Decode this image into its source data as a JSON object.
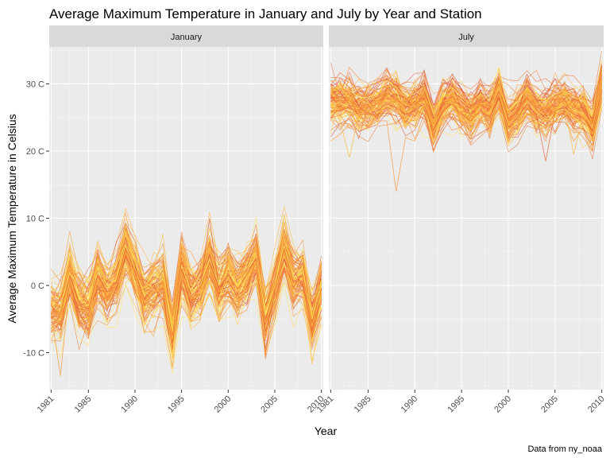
{
  "chart_data": {
    "type": "line",
    "title": "Average Maximum Temperature in January and July by Year and Station",
    "xlabel": "Year",
    "ylabel": "Average Maximum Temperature in Celsius",
    "caption": "Data from ny_noaa",
    "x_ticks": [
      1981,
      1985,
      1990,
      1995,
      2000,
      2005,
      2010
    ],
    "y_ticks": [
      -10,
      0,
      10,
      20,
      30
    ],
    "y_tick_labels": [
      "-10 C",
      "0 C",
      "10 C",
      "20 C",
      "30 C"
    ],
    "xlim": [
      1980.8,
      2010.2
    ],
    "ylim": [
      -15.5,
      35.5
    ],
    "grid": true,
    "legend": "none",
    "colors": [
      "#ffe55c",
      "#ffd23f",
      "#ffb83f",
      "#f79a3c",
      "#f07f3a",
      "#e8663a",
      "#dd4f3c"
    ],
    "panels": [
      {
        "name": "January",
        "years": [
          1981,
          1982,
          1983,
          1984,
          1985,
          1986,
          1987,
          1988,
          1989,
          1990,
          1991,
          1992,
          1993,
          1994,
          1995,
          1996,
          1997,
          1998,
          1999,
          2000,
          2001,
          2002,
          2003,
          2004,
          2005,
          2006,
          2007,
          2008,
          2009,
          2010
        ],
        "mean": [
          -3.5,
          -4.0,
          1.5,
          -2.5,
          -3.5,
          1.5,
          -1.0,
          0.5,
          5.5,
          2.0,
          -2.0,
          -0.5,
          0.5,
          -7.5,
          2.5,
          -1.5,
          -0.5,
          3.5,
          -0.5,
          1.5,
          -0.5,
          1.5,
          4.0,
          -5.0,
          -0.5,
          5.5,
          0.5,
          1.5,
          -5.5,
          -0.5
        ],
        "spread": 2.8,
        "series": [
          {
            "values": [
              -4.0,
              -13.5,
              0.5,
              -3.5,
              -4.0,
              1.0,
              -1.5,
              0.0,
              5.0,
              1.5,
              -2.5,
              -1.0,
              0.0,
              -8.0,
              2.0,
              -2.0,
              -1.0,
              3.0,
              -1.0,
              1.0,
              -1.0,
              1.0,
              3.5,
              -5.5,
              -1.0,
              5.0,
              0.0,
              1.0,
              -6.0,
              -1.0
            ]
          },
          {
            "values": [
              -3.0,
              -4.5,
              1.5,
              -3.0,
              -3.5,
              1.5,
              -1.0,
              0.5,
              5.5,
              2.0,
              -2.0,
              -0.5,
              0.5,
              -7.5,
              2.5,
              -1.5,
              -0.5,
              10.0,
              -0.5,
              1.5,
              -0.5,
              1.5,
              4.0,
              -5.0,
              -0.5,
              5.5,
              0.5,
              1.5,
              -5.5,
              -0.5
            ]
          },
          {
            "values": [
              -2.5,
              -3.0,
              2.0,
              -2.0,
              -3.0,
              2.0,
              -0.5,
              1.0,
              6.0,
              2.5,
              -1.5,
              0.0,
              1.0,
              -10.5,
              3.0,
              -1.0,
              0.0,
              4.0,
              0.0,
              2.0,
              0.0,
              2.0,
              4.5,
              -4.5,
              0.0,
              6.0,
              1.0,
              2.0,
              -5.0,
              0.0
            ]
          },
          {
            "values": [
              -4.0,
              -4.5,
              1.0,
              -3.0,
              -4.0,
              1.0,
              -1.5,
              0.0,
              5.0,
              1.5,
              -2.5,
              -1.0,
              0.0,
              -8.0,
              2.0,
              -2.0,
              -1.0,
              3.0,
              -1.0,
              1.0,
              -1.0,
              1.0,
              3.5,
              -5.5,
              -1.0,
              5.0,
              0.0,
              1.0,
              -6.0,
              -1.0
            ]
          },
          {
            "values": [
              -3.5,
              -4.0,
              1.5,
              -2.5,
              -3.5,
              1.5,
              -1.0,
              0.5,
              5.5,
              2.0,
              -2.0,
              -0.5,
              0.5,
              -7.5,
              2.5,
              -1.5,
              -0.5,
              3.5,
              -0.5,
              1.5,
              -0.5,
              1.5,
              4.0,
              -10.5,
              -0.5,
              5.5,
              0.5,
              1.5,
              -5.5,
              -0.5
            ]
          }
        ],
        "n_extra_series": 110
      },
      {
        "name": "July",
        "years": [
          1981,
          1982,
          1983,
          1984,
          1985,
          1986,
          1987,
          1988,
          1989,
          1990,
          1991,
          1992,
          1993,
          1994,
          1995,
          1996,
          1997,
          1998,
          1999,
          2000,
          2001,
          2002,
          2003,
          2004,
          2005,
          2006,
          2007,
          2008,
          2009,
          2010
        ],
        "mean": [
          27.5,
          27.5,
          27.5,
          26.5,
          26.5,
          27.0,
          28.5,
          28.0,
          26.5,
          27.0,
          28.0,
          24.0,
          27.0,
          28.0,
          26.5,
          25.5,
          27.0,
          26.0,
          29.0,
          24.5,
          26.0,
          28.0,
          26.5,
          26.0,
          27.0,
          27.5,
          26.5,
          26.0,
          24.0,
          30.0
        ],
        "spread": 2.3,
        "series": [
          {
            "values": [
              21.5,
              22.5,
              24.0,
              23.0,
              23.5,
              24.5,
              24.5,
              14.0,
              22.0,
              21.5,
              24.5,
              21.0,
              25.0,
              25.5,
              24.0,
              23.0,
              24.5,
              23.5,
              26.5,
              21.5,
              23.5,
              25.5,
              24.0,
              23.5,
              24.5,
              25.0,
              21.5,
              23.5,
              21.5,
              27.5
            ]
          },
          {
            "values": [
              26.0,
              26.0,
              26.5,
              25.5,
              25.5,
              26.0,
              27.0,
              26.5,
              25.5,
              26.0,
              27.0,
              23.0,
              26.0,
              27.0,
              25.5,
              24.5,
              26.0,
              25.0,
              28.0,
              23.5,
              25.0,
              27.0,
              25.5,
              18.5,
              26.0,
              26.5,
              25.5,
              25.0,
              23.0,
              29.0
            ]
          },
          {
            "values": [
              29.5,
              29.5,
              29.0,
              28.0,
              28.0,
              28.5,
              30.5,
              29.5,
              28.0,
              28.5,
              29.5,
              25.5,
              28.5,
              29.5,
              28.0,
              27.0,
              28.5,
              27.5,
              32.5,
              26.0,
              27.5,
              29.5,
              28.0,
              27.5,
              28.5,
              29.0,
              28.0,
              27.5,
              25.5,
              33.5
            ]
          },
          {
            "values": [
              27.0,
              24.5,
              19.0,
              25.5,
              26.0,
              26.5,
              28.0,
              27.5,
              26.0,
              26.5,
              27.5,
              23.5,
              26.5,
              27.5,
              26.0,
              25.0,
              26.5,
              25.5,
              28.5,
              24.0,
              25.5,
              27.5,
              26.0,
              25.5,
              26.5,
              27.0,
              19.5,
              25.5,
              23.5,
              29.5
            ]
          },
          {
            "values": [
              27.5,
              27.5,
              27.5,
              26.5,
              26.5,
              27.0,
              28.5,
              28.0,
              26.5,
              27.0,
              28.0,
              24.0,
              27.0,
              28.0,
              26.5,
              25.5,
              27.0,
              26.0,
              29.0,
              24.5,
              26.0,
              28.0,
              26.5,
              26.0,
              27.0,
              27.5,
              26.5,
              26.0,
              24.0,
              30.0
            ]
          }
        ],
        "n_extra_series": 110
      }
    ]
  }
}
